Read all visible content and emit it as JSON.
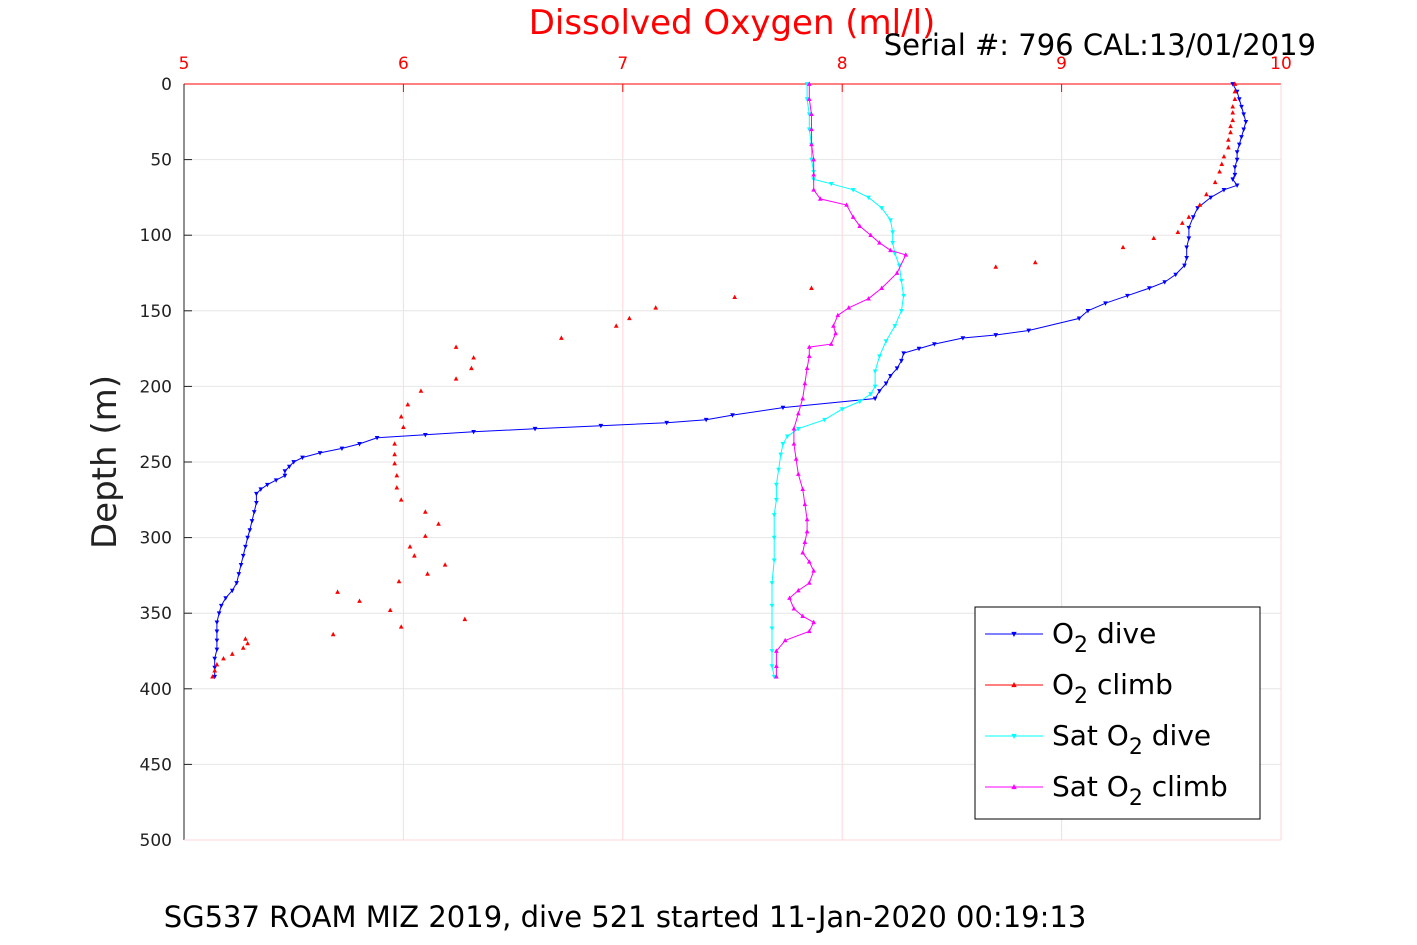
{
  "chart_data": {
    "type": "scatter",
    "title": "Dissolved Oxygen (ml/l)",
    "serial": "Serial #: 796  CAL:13/01/2019",
    "ylabel": "Depth (m)",
    "caption": "SG537 ROAM MIZ 2019, dive 521 started 11-Jan-2020 00:19:13",
    "xlim": [
      5,
      10
    ],
    "ylim": [
      0,
      500
    ],
    "y_reversed": true,
    "x_axis_position": "top",
    "x_ticks": [
      "5",
      "6",
      "7",
      "8",
      "9",
      "10"
    ],
    "y_ticks": [
      "0",
      "50",
      "100",
      "150",
      "200",
      "250",
      "300",
      "350",
      "400",
      "450",
      "500"
    ],
    "grid": true,
    "legend_position": "bottom-right",
    "colors": {
      "title": "#ff0000",
      "x_axis": "#ff0000",
      "grid": "#ffd6dc"
    },
    "series": [
      {
        "name": "O2 dive",
        "legend": {
          "pre": "O",
          "sub": "2",
          "post": " dive"
        },
        "color": "#0000ff",
        "marker": "triangle-down",
        "connected": true,
        "points": [
          [
            9.78,
            0
          ],
          [
            9.8,
            5
          ],
          [
            9.81,
            10
          ],
          [
            9.82,
            15
          ],
          [
            9.83,
            20
          ],
          [
            9.84,
            25
          ],
          [
            9.83,
            30
          ],
          [
            9.82,
            35
          ],
          [
            9.81,
            40
          ],
          [
            9.8,
            45
          ],
          [
            9.8,
            50
          ],
          [
            9.79,
            55
          ],
          [
            9.79,
            60
          ],
          [
            9.78,
            63
          ],
          [
            9.8,
            67
          ],
          [
            9.74,
            70
          ],
          [
            9.68,
            75
          ],
          [
            9.62,
            82
          ],
          [
            9.6,
            88
          ],
          [
            9.58,
            95
          ],
          [
            9.58,
            102
          ],
          [
            9.57,
            108
          ],
          [
            9.57,
            115
          ],
          [
            9.56,
            120
          ],
          [
            9.52,
            126
          ],
          [
            9.47,
            131
          ],
          [
            9.4,
            135
          ],
          [
            9.3,
            140
          ],
          [
            9.2,
            145
          ],
          [
            9.12,
            150
          ],
          [
            9.08,
            155
          ],
          [
            8.85,
            163
          ],
          [
            8.7,
            166
          ],
          [
            8.55,
            168
          ],
          [
            8.42,
            172
          ],
          [
            8.35,
            175
          ],
          [
            8.28,
            178
          ],
          [
            8.27,
            183
          ],
          [
            8.25,
            188
          ],
          [
            8.22,
            193
          ],
          [
            8.2,
            198
          ],
          [
            8.17,
            203
          ],
          [
            8.15,
            208
          ],
          [
            7.73,
            214
          ],
          [
            7.5,
            219
          ],
          [
            7.38,
            222
          ],
          [
            7.2,
            224
          ],
          [
            6.9,
            226
          ],
          [
            6.6,
            228
          ],
          [
            6.32,
            230
          ],
          [
            6.1,
            232
          ],
          [
            5.88,
            234
          ],
          [
            5.8,
            238
          ],
          [
            5.72,
            241
          ],
          [
            5.62,
            244
          ],
          [
            5.54,
            247
          ],
          [
            5.5,
            250
          ],
          [
            5.48,
            253
          ],
          [
            5.46,
            256
          ],
          [
            5.46,
            259
          ],
          [
            5.42,
            262
          ],
          [
            5.38,
            265
          ],
          [
            5.35,
            268
          ],
          [
            5.33,
            271
          ],
          [
            5.33,
            277
          ],
          [
            5.32,
            283
          ],
          [
            5.31,
            289
          ],
          [
            5.3,
            295
          ],
          [
            5.29,
            300
          ],
          [
            5.28,
            306
          ],
          [
            5.27,
            312
          ],
          [
            5.26,
            318
          ],
          [
            5.25,
            324
          ],
          [
            5.24,
            330
          ],
          [
            5.22,
            335
          ],
          [
            5.19,
            340
          ],
          [
            5.17,
            345
          ],
          [
            5.16,
            350
          ],
          [
            5.15,
            356
          ],
          [
            5.15,
            362
          ],
          [
            5.15,
            368
          ],
          [
            5.15,
            374
          ],
          [
            5.14,
            380
          ],
          [
            5.14,
            386
          ],
          [
            5.14,
            392
          ]
        ]
      },
      {
        "name": "O2 climb",
        "legend": {
          "pre": "O",
          "sub": "2",
          "post": " climb"
        },
        "color": "#ff0000",
        "marker": "triangle-up",
        "connected": false,
        "points": [
          [
            5.13,
            392
          ],
          [
            5.14,
            388
          ],
          [
            5.15,
            384
          ],
          [
            5.18,
            380
          ],
          [
            5.22,
            377
          ],
          [
            5.27,
            373
          ],
          [
            5.29,
            370
          ],
          [
            5.28,
            367
          ],
          [
            5.68,
            364
          ],
          [
            5.99,
            359
          ],
          [
            6.28,
            354
          ],
          [
            5.94,
            348
          ],
          [
            5.8,
            342
          ],
          [
            5.7,
            336
          ],
          [
            5.98,
            329
          ],
          [
            6.11,
            324
          ],
          [
            6.19,
            318
          ],
          [
            6.05,
            312
          ],
          [
            6.03,
            306
          ],
          [
            6.1,
            299
          ],
          [
            6.16,
            291
          ],
          [
            6.1,
            283
          ],
          [
            5.99,
            275
          ],
          [
            5.97,
            267
          ],
          [
            5.97,
            259
          ],
          [
            5.96,
            251
          ],
          [
            5.96,
            245
          ],
          [
            5.96,
            238
          ],
          [
            6.0,
            227
          ],
          [
            5.99,
            220
          ],
          [
            6.02,
            212
          ],
          [
            6.08,
            203
          ],
          [
            6.24,
            195
          ],
          [
            6.31,
            188
          ],
          [
            6.32,
            181
          ],
          [
            6.24,
            174
          ],
          [
            6.72,
            168
          ],
          [
            6.97,
            160
          ],
          [
            7.03,
            155
          ],
          [
            7.15,
            148
          ],
          [
            7.51,
            141
          ],
          [
            7.86,
            135
          ],
          [
            8.88,
            118
          ],
          [
            8.7,
            121
          ],
          [
            9.28,
            108
          ],
          [
            9.42,
            102
          ],
          [
            9.53,
            98
          ],
          [
            9.55,
            92
          ],
          [
            9.58,
            88
          ],
          [
            9.63,
            80
          ],
          [
            9.66,
            73
          ],
          [
            9.7,
            65
          ],
          [
            9.72,
            58
          ],
          [
            9.73,
            53
          ],
          [
            9.74,
            48
          ],
          [
            9.76,
            42
          ],
          [
            9.76,
            37
          ],
          [
            9.77,
            32
          ],
          [
            9.77,
            28
          ],
          [
            9.78,
            24
          ],
          [
            9.78,
            19
          ],
          [
            9.78,
            15
          ],
          [
            9.79,
            10
          ],
          [
            9.79,
            5
          ],
          [
            9.79,
            0
          ]
        ]
      },
      {
        "name": "Sat O2 dive",
        "legend": {
          "pre": "Sat O",
          "sub": "2",
          "post": " dive"
        },
        "color": "#00ffff",
        "marker": "triangle-down",
        "connected": true,
        "points": [
          [
            7.84,
            0
          ],
          [
            7.84,
            10
          ],
          [
            7.85,
            20
          ],
          [
            7.85,
            30
          ],
          [
            7.86,
            40
          ],
          [
            7.86,
            50
          ],
          [
            7.87,
            58
          ],
          [
            7.87,
            63
          ],
          [
            7.95,
            66
          ],
          [
            8.05,
            70
          ],
          [
            8.12,
            75
          ],
          [
            8.18,
            82
          ],
          [
            8.22,
            90
          ],
          [
            8.23,
            98
          ],
          [
            8.23,
            105
          ],
          [
            8.24,
            112
          ],
          [
            8.26,
            120
          ],
          [
            8.27,
            130
          ],
          [
            8.28,
            140
          ],
          [
            8.27,
            150
          ],
          [
            8.24,
            160
          ],
          [
            8.2,
            170
          ],
          [
            8.17,
            180
          ],
          [
            8.15,
            190
          ],
          [
            8.15,
            200
          ],
          [
            8.13,
            205
          ],
          [
            8.08,
            210
          ],
          [
            8.0,
            215
          ],
          [
            7.92,
            222
          ],
          [
            7.8,
            228
          ],
          [
            7.75,
            233
          ],
          [
            7.73,
            238
          ],
          [
            7.72,
            245
          ],
          [
            7.71,
            255
          ],
          [
            7.7,
            265
          ],
          [
            7.7,
            275
          ],
          [
            7.69,
            285
          ],
          [
            7.69,
            300
          ],
          [
            7.69,
            315
          ],
          [
            7.68,
            330
          ],
          [
            7.68,
            345
          ],
          [
            7.68,
            360
          ],
          [
            7.68,
            375
          ],
          [
            7.68,
            385
          ],
          [
            7.69,
            392
          ]
        ]
      },
      {
        "name": "Sat O2 climb",
        "legend": {
          "pre": "Sat O",
          "sub": "2",
          "post": " climb"
        },
        "color": "#ff00ff",
        "marker": "triangle-up",
        "connected": true,
        "points": [
          [
            7.7,
            392
          ],
          [
            7.7,
            385
          ],
          [
            7.7,
            375
          ],
          [
            7.74,
            368
          ],
          [
            7.85,
            362
          ],
          [
            7.87,
            356
          ],
          [
            7.82,
            352
          ],
          [
            7.78,
            347
          ],
          [
            7.76,
            340
          ],
          [
            7.8,
            335
          ],
          [
            7.85,
            330
          ],
          [
            7.87,
            322
          ],
          [
            7.85,
            316
          ],
          [
            7.82,
            310
          ],
          [
            7.83,
            303
          ],
          [
            7.84,
            296
          ],
          [
            7.84,
            288
          ],
          [
            7.83,
            278
          ],
          [
            7.82,
            268
          ],
          [
            7.8,
            258
          ],
          [
            7.79,
            248
          ],
          [
            7.78,
            238
          ],
          [
            7.78,
            228
          ],
          [
            7.8,
            218
          ],
          [
            7.82,
            208
          ],
          [
            7.83,
            198
          ],
          [
            7.84,
            188
          ],
          [
            7.85,
            180
          ],
          [
            7.85,
            174
          ],
          [
            7.95,
            172
          ],
          [
            7.97,
            165
          ],
          [
            7.96,
            160
          ],
          [
            7.98,
            153
          ],
          [
            8.03,
            148
          ],
          [
            8.12,
            142
          ],
          [
            8.18,
            135
          ],
          [
            8.25,
            125
          ],
          [
            8.29,
            113
          ],
          [
            8.22,
            110
          ],
          [
            8.17,
            105
          ],
          [
            8.13,
            100
          ],
          [
            8.08,
            94
          ],
          [
            8.05,
            88
          ],
          [
            8.02,
            80
          ],
          [
            7.9,
            76
          ],
          [
            7.87,
            70
          ],
          [
            7.87,
            60
          ],
          [
            7.87,
            50
          ],
          [
            7.86,
            40
          ],
          [
            7.86,
            30
          ],
          [
            7.86,
            20
          ],
          [
            7.85,
            10
          ],
          [
            7.85,
            0
          ]
        ]
      }
    ]
  }
}
